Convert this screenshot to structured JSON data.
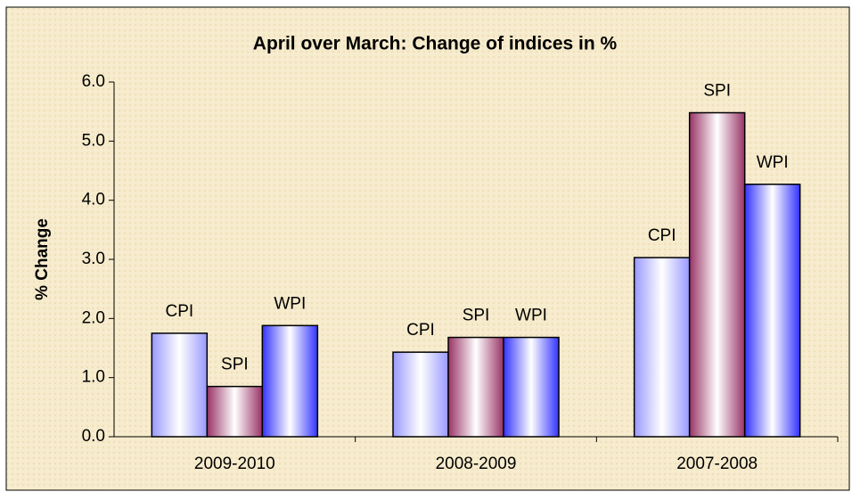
{
  "chart_data": {
    "type": "bar",
    "title": "April over March: Change of indices in %",
    "y_label": "% Change",
    "categories": [
      "2009-2010",
      "2008-2009",
      "2007-2008"
    ],
    "series": [
      {
        "name": "CPI",
        "color": "#9999ff",
        "values": [
          1.75,
          1.43,
          3.03
        ]
      },
      {
        "name": "SPI",
        "color": "#993366",
        "values": [
          0.85,
          1.68,
          5.48
        ]
      },
      {
        "name": "WPI",
        "color": "#3333ff",
        "values": [
          1.88,
          1.68,
          4.27
        ]
      }
    ],
    "ylim": [
      0,
      6
    ],
    "yticks": [
      {
        "value": 0,
        "label": "0.0"
      },
      {
        "value": 1,
        "label": "1.0"
      },
      {
        "value": 2,
        "label": "2.0"
      },
      {
        "value": 3,
        "label": "3.0"
      },
      {
        "value": 4,
        "label": "4.0"
      },
      {
        "value": 5,
        "label": "5.0"
      },
      {
        "value": 6,
        "label": "6.0"
      }
    ],
    "grid": false
  }
}
